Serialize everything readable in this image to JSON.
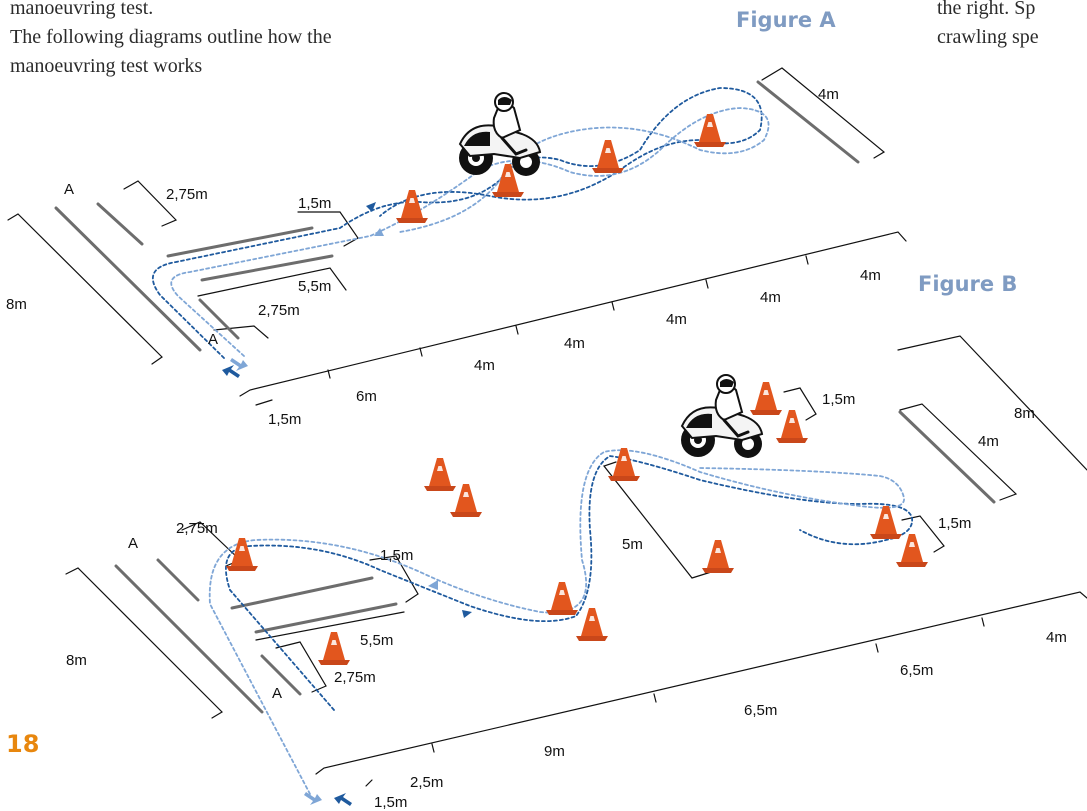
{
  "intro": {
    "line1": "manoeuvring test.",
    "line2": "The following diagrams outline how the",
    "line3": "manoeuvring test works"
  },
  "right_text": {
    "line1": "the right. Sp",
    "line2": "crawling spe"
  },
  "page_number": "18",
  "figure_a": {
    "title": "Figure A",
    "labels": {
      "a_top": "A",
      "a_bottom": "A",
      "w_275_top": "2,75m",
      "w_15": "1,5m",
      "w_55": "5,5m",
      "w_275_bot": "2,75m",
      "depth_8m": "8m",
      "s_15": "1,5m",
      "s_6": "6m",
      "s_4a": "4m",
      "s_4b": "4m",
      "s_4c": "4m",
      "s_4d": "4m",
      "s_4e": "4m",
      "end_4m": "4m"
    }
  },
  "figure_b": {
    "title": "Figure B",
    "labels": {
      "a_top": "A",
      "a_bottom": "A",
      "w_275_top": "2,75m",
      "w_15": "1,5m",
      "w_55": "5,5m",
      "w_275_bot": "2,75m",
      "depth_8m_left": "8m",
      "s_15": "1,5m",
      "s_25": "2,5m",
      "s_9": "9m",
      "s_65a": "6,5m",
      "s_65b": "6,5m",
      "s_4": "4m",
      "slalom_5m": "5m",
      "gate_15_right": "1,5m",
      "gate_15_top": "1,5m",
      "end_4m": "4m",
      "end_8m": "8m"
    }
  },
  "colors": {
    "path_dark": "#1f5a9e",
    "path_light": "#7fa6d6",
    "cone": "#e2561e",
    "figure_title": "#7f9bc2",
    "page_number": "#e8870e"
  },
  "icons": [
    "traffic-cone-icon",
    "motorcycle-icon",
    "direction-arrow-icon"
  ]
}
